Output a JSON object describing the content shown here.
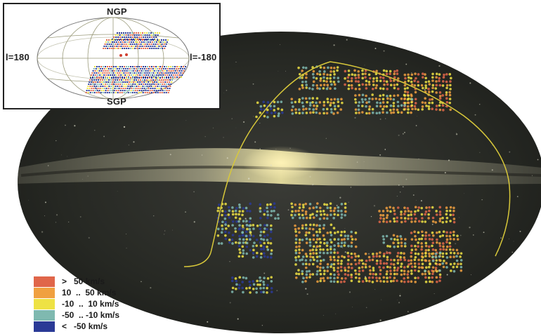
{
  "inset": {
    "label_top": "NGP",
    "label_bottom": "SGP",
    "label_left": "l=180",
    "label_right": "l=-180"
  },
  "legend": [
    {
      "text": ">   50 km/s",
      "color": "#e0664a"
    },
    {
      "text": "10  ..  50 km/s",
      "color": "#f0a040"
    },
    {
      "text": "-10  ..  10 km/s",
      "color": "#eee244"
    },
    {
      "text": "-50  .. -10 km/s",
      "color": "#7fb9b0"
    },
    {
      "text": "<   -50 km/s",
      "color": "#2a3a96"
    }
  ]
}
